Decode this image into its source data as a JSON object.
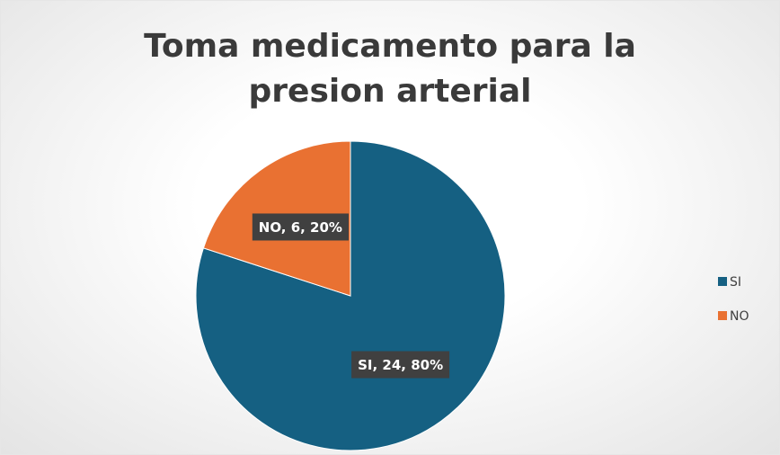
{
  "chart_data": {
    "type": "pie",
    "title": "Toma medicamento para la presion arterial",
    "categories": [
      "SI",
      "NO"
    ],
    "values": [
      24,
      6
    ],
    "value_labels": [
      "SI, 24, 80%",
      "NO, 6, 20%"
    ],
    "colors": [
      "#156082",
      "#e97132"
    ],
    "legend": "right"
  }
}
